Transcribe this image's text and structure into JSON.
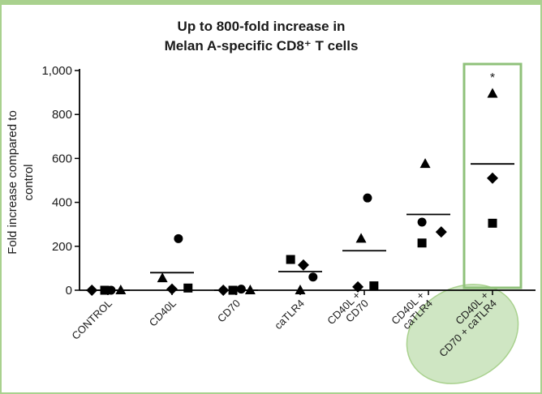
{
  "colors": {
    "frame": "#a9d18e",
    "highlight_box": "#8fc17a",
    "highlight_ellipse_fill": "#cfe6c3",
    "highlight_ellipse_stroke": "#a9d18e",
    "marks": "#000000"
  },
  "chart_data": {
    "type": "scatter",
    "title": [
      "Up to 800-fold increase in",
      "Melan A-specific CD8⁺ T cells"
    ],
    "ylabel": [
      "Fold increase compared to",
      "control"
    ],
    "ylim": [
      0,
      1000
    ],
    "yticks": [
      0,
      200,
      400,
      600,
      800,
      1000
    ],
    "ytick_labels": [
      "0",
      "200",
      "400",
      "600",
      "800",
      "1,000"
    ],
    "categories": [
      [
        "CONTROL"
      ],
      [
        "CD40L"
      ],
      [
        "CD70"
      ],
      [
        "caTLR4"
      ],
      [
        "CD40L +",
        "CD70"
      ],
      [
        "CD40L +",
        "caTLR4"
      ],
      [
        "CD40L +",
        "CD70 + caTLR4"
      ]
    ],
    "highlight_category": 6,
    "annotation": "*",
    "points": [
      {
        "category": 0,
        "offset": -0.25,
        "shape": "diamond",
        "y": 0
      },
      {
        "category": 0,
        "offset": -0.05,
        "shape": "square",
        "y": 0
      },
      {
        "category": 0,
        "offset": 0.05,
        "shape": "circle",
        "y": 0
      },
      {
        "category": 0,
        "offset": 0.2,
        "shape": "triangle",
        "y": 0
      },
      {
        "category": 1,
        "offset": -0.15,
        "shape": "triangle",
        "y": 55
      },
      {
        "category": 1,
        "offset": 0.0,
        "shape": "diamond",
        "y": 5
      },
      {
        "category": 1,
        "offset": 0.1,
        "shape": "circle",
        "y": 235
      },
      {
        "category": 1,
        "offset": 0.25,
        "shape": "square",
        "y": 10
      },
      {
        "category": 2,
        "offset": -0.2,
        "shape": "diamond",
        "y": 0
      },
      {
        "category": 2,
        "offset": -0.05,
        "shape": "square",
        "y": 0
      },
      {
        "category": 2,
        "offset": 0.08,
        "shape": "circle",
        "y": 5
      },
      {
        "category": 2,
        "offset": 0.22,
        "shape": "triangle",
        "y": 0
      },
      {
        "category": 3,
        "offset": -0.15,
        "shape": "square",
        "y": 140
      },
      {
        "category": 3,
        "offset": 0.0,
        "shape": "triangle",
        "y": 0
      },
      {
        "category": 3,
        "offset": 0.05,
        "shape": "diamond",
        "y": 115
      },
      {
        "category": 3,
        "offset": 0.2,
        "shape": "circle",
        "y": 60
      },
      {
        "category": 4,
        "offset": -0.1,
        "shape": "diamond",
        "y": 15
      },
      {
        "category": 4,
        "offset": -0.05,
        "shape": "triangle",
        "y": 235
      },
      {
        "category": 4,
        "offset": 0.05,
        "shape": "circle",
        "y": 420
      },
      {
        "category": 4,
        "offset": 0.15,
        "shape": "square",
        "y": 20
      },
      {
        "category": 5,
        "offset": -0.1,
        "shape": "square",
        "y": 215
      },
      {
        "category": 5,
        "offset": -0.1,
        "shape": "circle",
        "y": 310
      },
      {
        "category": 5,
        "offset": -0.05,
        "shape": "triangle",
        "y": 575
      },
      {
        "category": 5,
        "offset": 0.2,
        "shape": "diamond",
        "y": 265
      },
      {
        "category": 6,
        "offset": 0.0,
        "shape": "triangle",
        "y": 895
      },
      {
        "category": 6,
        "offset": 0.0,
        "shape": "diamond",
        "y": 510
      },
      {
        "category": 6,
        "offset": 0.0,
        "shape": "square",
        "y": 305
      }
    ],
    "means": [
      0,
      80,
      0,
      85,
      180,
      345,
      575
    ]
  }
}
